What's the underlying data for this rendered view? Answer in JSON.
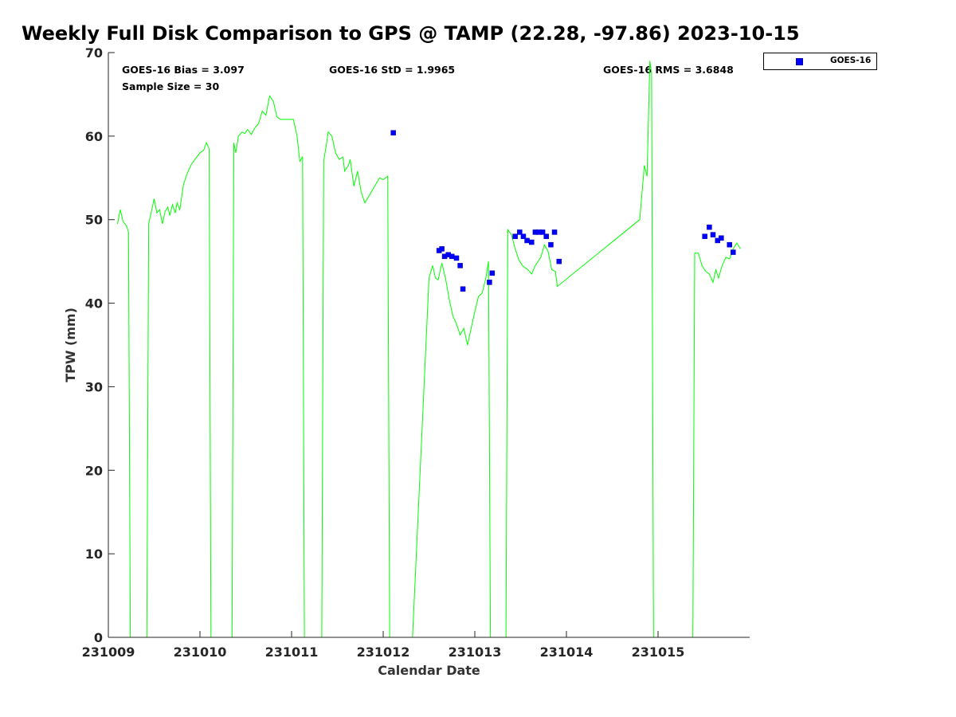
{
  "chart_data": {
    "type": "line",
    "title": "Weekly Full Disk Comparison to GPS @ TAMP (22.28, -97.86) 2023-10-15",
    "xlabel": "Calendar Date",
    "ylabel": "TPW (mm)",
    "xlim": [
      231009,
      231016
    ],
    "ylim": [
      0,
      70
    ],
    "x_ticks": [
      "231009",
      "231010",
      "231011",
      "231012",
      "231013",
      "231014",
      "231015"
    ],
    "y_ticks": [
      "0",
      "10",
      "20",
      "30",
      "40",
      "50",
      "60",
      "70"
    ],
    "grid": false,
    "legend_position": "top-right, outside plot",
    "stats": {
      "bias": "GOES-16 Bias = 3.097",
      "std": "GOES-16 StD = 1.9965",
      "rms": "GOES-16 RMS = 3.6848",
      "sample": "Sample Size = 30"
    },
    "series": [
      {
        "type": "line",
        "color": "#00ff00",
        "points": [
          [
            231009.1,
            49.5
          ],
          [
            231009.13,
            51.2
          ],
          [
            231009.16,
            49.8
          ],
          [
            231009.2,
            49.2
          ],
          [
            231009.22,
            48.5
          ],
          [
            231009.24,
            0
          ],
          [
            231009.42,
            0
          ],
          [
            231009.44,
            49.5
          ],
          [
            231009.47,
            51.0
          ],
          [
            231009.5,
            52.5
          ],
          [
            231009.53,
            50.8
          ],
          [
            231009.56,
            51.2
          ],
          [
            231009.59,
            49.5
          ],
          [
            231009.62,
            51.0
          ],
          [
            231009.65,
            51.5
          ],
          [
            231009.67,
            50.5
          ],
          [
            231009.7,
            51.8
          ],
          [
            231009.73,
            50.8
          ],
          [
            231009.75,
            52.0
          ],
          [
            231009.78,
            51.2
          ],
          [
            231009.82,
            54.2
          ],
          [
            231009.86,
            55.5
          ],
          [
            231009.9,
            56.5
          ],
          [
            231009.95,
            57.3
          ],
          [
            231010.0,
            58.0
          ],
          [
            231010.04,
            58.3
          ],
          [
            231010.07,
            59.2
          ],
          [
            231010.1,
            58.5
          ],
          [
            231010.12,
            0
          ],
          [
            231010.35,
            0
          ],
          [
            231010.37,
            59.2
          ],
          [
            231010.39,
            58.0
          ],
          [
            231010.42,
            60.0
          ],
          [
            231010.46,
            60.5
          ],
          [
            231010.49,
            60.3
          ],
          [
            231010.52,
            60.8
          ],
          [
            231010.56,
            60.2
          ],
          [
            231010.6,
            61.0
          ],
          [
            231010.64,
            61.5
          ],
          [
            231010.68,
            63.0
          ],
          [
            231010.72,
            62.5
          ],
          [
            231010.76,
            64.8
          ],
          [
            231010.8,
            64.2
          ],
          [
            231010.84,
            62.3
          ],
          [
            231010.88,
            62.0
          ],
          [
            231010.95,
            62.0
          ],
          [
            231011.02,
            62.0
          ],
          [
            231011.06,
            60.0
          ],
          [
            231011.09,
            57.0
          ],
          [
            231011.12,
            57.5
          ],
          [
            231011.14,
            0
          ],
          [
            231011.33,
            0
          ],
          [
            231011.35,
            57.0
          ],
          [
            231011.38,
            59.0
          ],
          [
            231011.4,
            60.5
          ],
          [
            231011.44,
            60.0
          ],
          [
            231011.48,
            58.0
          ],
          [
            231011.52,
            57.2
          ],
          [
            231011.56,
            57.5
          ],
          [
            231011.58,
            55.8
          ],
          [
            231011.62,
            56.5
          ],
          [
            231011.64,
            57.2
          ],
          [
            231011.68,
            54.0
          ],
          [
            231011.72,
            55.8
          ],
          [
            231011.76,
            53.3
          ],
          [
            231011.8,
            52.0
          ],
          [
            231011.88,
            53.5
          ],
          [
            231011.96,
            55.0
          ],
          [
            231012.0,
            54.8
          ],
          [
            231012.05,
            55.2
          ],
          [
            231012.07,
            0
          ],
          [
            231012.32,
            0
          ],
          [
            231012.5,
            43.0
          ],
          [
            231012.54,
            44.5
          ],
          [
            231012.57,
            43.0
          ],
          [
            231012.6,
            42.8
          ],
          [
            231012.64,
            44.8
          ],
          [
            231012.68,
            43.0
          ],
          [
            231012.72,
            40.5
          ],
          [
            231012.76,
            38.5
          ],
          [
            231012.8,
            37.5
          ],
          [
            231012.84,
            36.2
          ],
          [
            231012.88,
            37.0
          ],
          [
            231012.92,
            35.0
          ],
          [
            231012.96,
            37.0
          ],
          [
            231013.0,
            39.0
          ],
          [
            231013.04,
            40.8
          ],
          [
            231013.08,
            41.2
          ],
          [
            231013.12,
            43.0
          ],
          [
            231013.15,
            45.0
          ],
          [
            231013.17,
            0
          ],
          [
            231013.34,
            0
          ],
          [
            231013.36,
            48.8
          ],
          [
            231013.4,
            48.2
          ],
          [
            231013.44,
            46.5
          ],
          [
            231013.48,
            45.2
          ],
          [
            231013.52,
            44.5
          ],
          [
            231013.58,
            44.0
          ],
          [
            231013.62,
            43.5
          ],
          [
            231013.66,
            44.5
          ],
          [
            231013.72,
            45.5
          ],
          [
            231013.76,
            47.0
          ],
          [
            231013.8,
            46.2
          ],
          [
            231013.84,
            44.0
          ],
          [
            231013.88,
            43.8
          ],
          [
            231013.9,
            42.0
          ],
          [
            231014.8,
            50.0
          ],
          [
            231014.85,
            56.5
          ],
          [
            231014.88,
            55.2
          ],
          [
            231014.91,
            69.0
          ],
          [
            231014.93,
            67.5
          ],
          [
            231014.95,
            0
          ],
          [
            231015.38,
            0
          ],
          [
            231015.4,
            46.0
          ],
          [
            231015.44,
            46.0
          ],
          [
            231015.48,
            44.5
          ],
          [
            231015.52,
            43.8
          ],
          [
            231015.56,
            43.5
          ],
          [
            231015.6,
            42.5
          ],
          [
            231015.63,
            44.0
          ],
          [
            231015.66,
            43.0
          ],
          [
            231015.7,
            44.5
          ],
          [
            231015.74,
            45.5
          ],
          [
            231015.78,
            45.3
          ],
          [
            231015.82,
            46.5
          ],
          [
            231015.86,
            47.2
          ],
          [
            231015.9,
            46.5
          ]
        ]
      },
      {
        "name": "GOES-16",
        "type": "scatter",
        "marker": "square",
        "color": "#0000ff",
        "points": [
          [
            231012.11,
            60.4
          ],
          [
            231012.61,
            46.3
          ],
          [
            231012.64,
            46.5
          ],
          [
            231012.67,
            45.6
          ],
          [
            231012.71,
            45.8
          ],
          [
            231012.75,
            45.6
          ],
          [
            231012.8,
            45.4
          ],
          [
            231012.84,
            44.5
          ],
          [
            231012.87,
            41.7
          ],
          [
            231013.16,
            42.5
          ],
          [
            231013.19,
            43.6
          ],
          [
            231013.44,
            48.0
          ],
          [
            231013.49,
            48.5
          ],
          [
            231013.53,
            48.0
          ],
          [
            231013.57,
            47.5
          ],
          [
            231013.62,
            47.3
          ],
          [
            231013.66,
            48.5
          ],
          [
            231013.7,
            48.5
          ],
          [
            231013.74,
            48.5
          ],
          [
            231013.78,
            48.0
          ],
          [
            231013.83,
            47.0
          ],
          [
            231013.87,
            48.5
          ],
          [
            231013.92,
            45.0
          ],
          [
            231015.51,
            48.0
          ],
          [
            231015.56,
            49.1
          ],
          [
            231015.6,
            48.2
          ],
          [
            231015.65,
            47.5
          ],
          [
            231015.69,
            47.8
          ],
          [
            231015.78,
            47.0
          ],
          [
            231015.82,
            46.1
          ]
        ]
      }
    ]
  }
}
